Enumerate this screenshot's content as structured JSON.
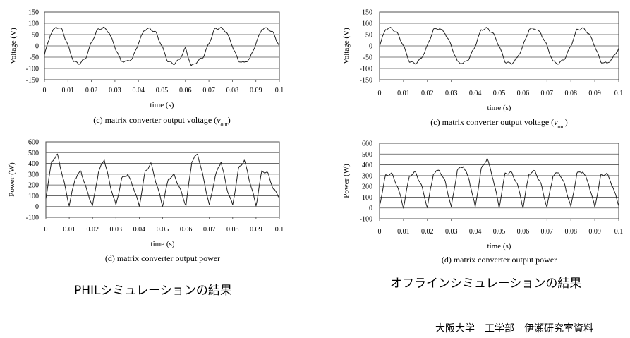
{
  "captions": {
    "left": "PHILシミュレーションの結果",
    "right": "オフラインシミュレーションの結果",
    "credit": "大阪大学　工学部　伊瀬研究室資料"
  },
  "chart_data": [
    {
      "type": "line",
      "panel": "phil-voltage",
      "caption_main": "(c) matrix converter output voltage (",
      "caption_var": "v",
      "caption_sub": "out",
      "caption_end": ")",
      "xlabel": "time (s)",
      "ylabel": "Voltage (V)",
      "xlim": [
        0,
        0.1
      ],
      "ylim": [
        -150,
        150
      ],
      "xticks": [
        "0",
        "0.01",
        "0.02",
        "0.03",
        "0.04",
        "0.05",
        "0.06",
        "0.07",
        "0.08",
        "0.09",
        "0.1"
      ],
      "yticks": [
        "150",
        "100",
        "50",
        "0",
        "-50",
        "-100",
        "-150"
      ],
      "grid": "horizontal",
      "color": "#222222",
      "series": [
        {
          "x": [
            0,
            0.0025,
            0.005,
            0.0075,
            0.01,
            0.0125,
            0.015,
            0.0175,
            0.02,
            0.0225,
            0.025,
            0.0275,
            0.03,
            0.0325,
            0.035,
            0.0375,
            0.04,
            0.0425,
            0.045,
            0.0475,
            0.05,
            0.0525,
            0.055,
            0.0575,
            0.06,
            0.0625,
            0.065,
            0.0675,
            0.07,
            0.0725,
            0.075,
            0.0775,
            0.08,
            0.0825,
            0.085,
            0.0875,
            0.09,
            0.0925,
            0.095,
            0.0975,
            0.1
          ],
          "values": [
            -40,
            50,
            85,
            72,
            0,
            -70,
            -78,
            -55,
            15,
            70,
            82,
            60,
            -5,
            -65,
            -70,
            -55,
            12,
            72,
            76,
            58,
            -2,
            -68,
            -80,
            -60,
            -10,
            -90,
            -70,
            -50,
            10,
            75,
            80,
            62,
            0,
            -65,
            -75,
            -55,
            10,
            75,
            78,
            55,
            -2
          ]
        }
      ]
    },
    {
      "type": "line",
      "panel": "offline-voltage",
      "caption_main": "(c) matrix converter output voltage (",
      "caption_var": "v",
      "caption_sub": "out",
      "caption_end": ")",
      "xlabel": "time (s)",
      "ylabel": "Voltage (V)",
      "xlim": [
        0,
        0.1
      ],
      "ylim": [
        -150,
        150
      ],
      "xticks": [
        "0",
        "0.01",
        "0.02",
        "0.03",
        "0.04",
        "0.05",
        "0.06",
        "0.07",
        "0.08",
        "0.09",
        "0.1"
      ],
      "yticks": [
        "150",
        "100",
        "50",
        "0",
        "-50",
        "-100",
        "-150"
      ],
      "grid": "horizontal",
      "color": "#222222",
      "series": [
        {
          "x": [
            0,
            0.0025,
            0.005,
            0.0075,
            0.01,
            0.0125,
            0.015,
            0.0175,
            0.02,
            0.0225,
            0.025,
            0.0275,
            0.03,
            0.0325,
            0.035,
            0.0375,
            0.04,
            0.0425,
            0.045,
            0.0475,
            0.05,
            0.0525,
            0.055,
            0.0575,
            0.06,
            0.0625,
            0.065,
            0.0675,
            0.07,
            0.0725,
            0.075,
            0.0775,
            0.08,
            0.0825,
            0.085,
            0.0875,
            0.09,
            0.0925,
            0.095,
            0.0975,
            0.1
          ],
          "values": [
            0,
            75,
            78,
            55,
            0,
            -70,
            -78,
            -55,
            0,
            72,
            78,
            55,
            0,
            -70,
            -78,
            -55,
            0,
            72,
            78,
            55,
            0,
            -70,
            -80,
            -55,
            0,
            72,
            78,
            55,
            0,
            -70,
            -78,
            -55,
            0,
            72,
            78,
            55,
            0,
            -70,
            -78,
            -55,
            -10
          ]
        }
      ]
    },
    {
      "type": "line",
      "panel": "phil-power",
      "caption_main": "(d) matrix converter output power",
      "caption_var": "",
      "caption_sub": "",
      "caption_end": "",
      "xlabel": "time (s)",
      "ylabel": "Power (W)",
      "xlim": [
        0,
        0.1
      ],
      "ylim": [
        -100,
        600
      ],
      "xticks": [
        "0",
        "0.01",
        "0.02",
        "0.03",
        "0.04",
        "0.05",
        "0.06",
        "0.07",
        "0.08",
        "0.09",
        "0.1"
      ],
      "yticks": [
        "600",
        "500",
        "400",
        "300",
        "200",
        "100",
        "0",
        "-100"
      ],
      "grid": "horizontal",
      "color": "#222222",
      "series": [
        {
          "x": [
            0,
            0.0025,
            0.005,
            0.0075,
            0.01,
            0.0125,
            0.015,
            0.0175,
            0.02,
            0.0225,
            0.025,
            0.0275,
            0.03,
            0.0325,
            0.035,
            0.0375,
            0.04,
            0.0425,
            0.045,
            0.0475,
            0.05,
            0.0525,
            0.055,
            0.0575,
            0.06,
            0.0625,
            0.065,
            0.0675,
            0.07,
            0.0725,
            0.075,
            0.0775,
            0.08,
            0.0825,
            0.085,
            0.0875,
            0.09,
            0.0925,
            0.095,
            0.0975,
            0.1
          ],
          "values": [
            80,
            420,
            480,
            250,
            10,
            260,
            330,
            150,
            5,
            320,
            440,
            200,
            10,
            260,
            300,
            180,
            5,
            320,
            400,
            200,
            10,
            260,
            290,
            160,
            10,
            420,
            490,
            260,
            10,
            280,
            420,
            170,
            10,
            350,
            430,
            220,
            10,
            330,
            310,
            160,
            90
          ]
        }
      ]
    },
    {
      "type": "line",
      "panel": "offline-power",
      "caption_main": "(d) matrix converter output power",
      "caption_var": "",
      "caption_sub": "",
      "caption_end": "",
      "xlabel": "time (s)",
      "ylabel": "Power (W)",
      "xlim": [
        0,
        0.1
      ],
      "ylim": [
        -100,
        600
      ],
      "xticks": [
        "0",
        "0.01",
        "0.02",
        "0.03",
        "0.04",
        "0.05",
        "0.06",
        "0.07",
        "0.08",
        "0.09",
        "0.1"
      ],
      "yticks": [
        "600",
        "500",
        "400",
        "300",
        "200",
        "100",
        "0",
        "-100"
      ],
      "grid": "horizontal",
      "color": "#222222",
      "series": [
        {
          "x": [
            0,
            0.0025,
            0.005,
            0.0075,
            0.01,
            0.0125,
            0.015,
            0.0175,
            0.02,
            0.0225,
            0.025,
            0.0275,
            0.03,
            0.0325,
            0.035,
            0.0375,
            0.04,
            0.0425,
            0.045,
            0.0475,
            0.05,
            0.0525,
            0.055,
            0.0575,
            0.06,
            0.0625,
            0.065,
            0.0675,
            0.07,
            0.0725,
            0.075,
            0.0775,
            0.08,
            0.0825,
            0.085,
            0.0875,
            0.09,
            0.0925,
            0.095,
            0.0975,
            0.1
          ],
          "values": [
            20,
            300,
            320,
            200,
            5,
            300,
            330,
            210,
            5,
            320,
            350,
            240,
            5,
            350,
            390,
            260,
            5,
            360,
            460,
            270,
            5,
            320,
            330,
            230,
            5,
            320,
            340,
            220,
            5,
            300,
            330,
            210,
            5,
            320,
            340,
            220,
            5,
            300,
            320,
            200,
            20
          ]
        }
      ]
    }
  ]
}
